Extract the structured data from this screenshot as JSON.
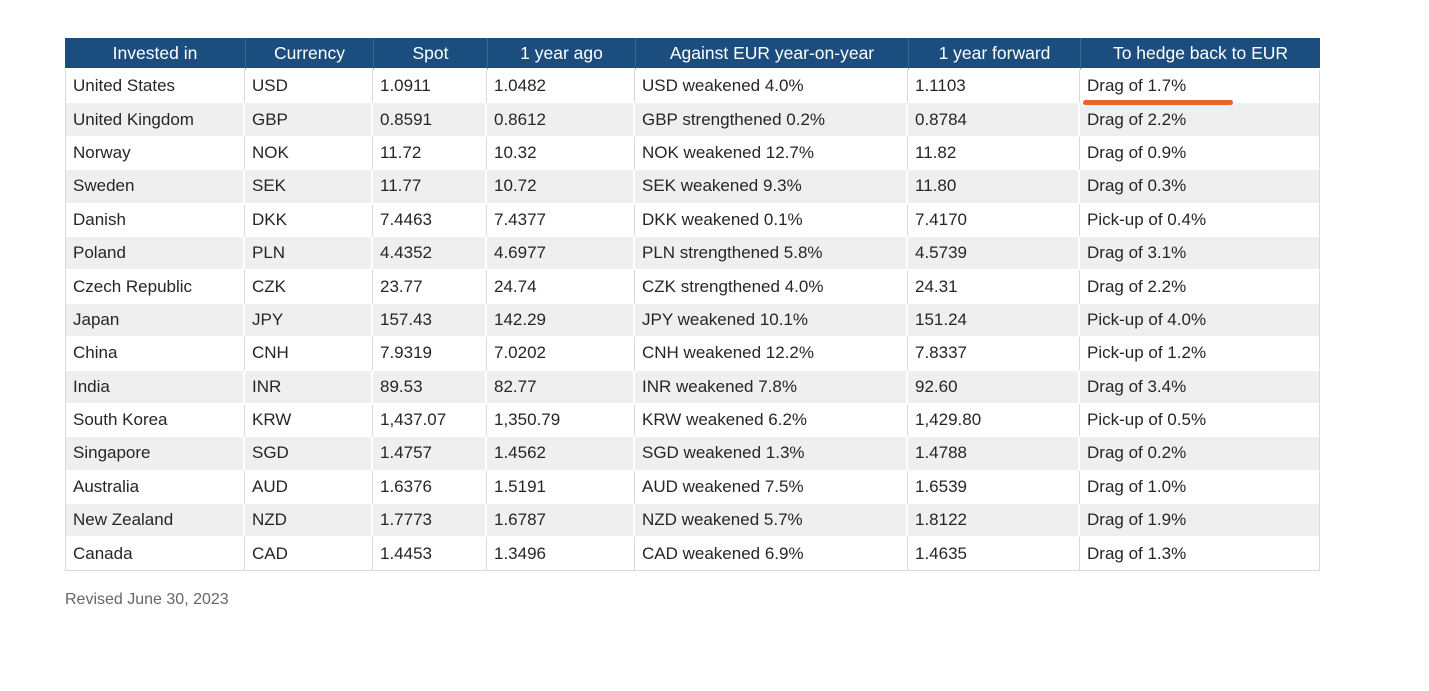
{
  "chart_data": {
    "type": "table",
    "title": "",
    "columns": [
      {
        "key": "invested_in",
        "label": "Invested in"
      },
      {
        "key": "currency",
        "label": "Currency"
      },
      {
        "key": "spot",
        "label": "Spot"
      },
      {
        "key": "one_year_ago",
        "label": "1 year ago"
      },
      {
        "key": "against_eur_yoy",
        "label": "Against EUR year-on-year"
      },
      {
        "key": "one_year_forward",
        "label": "1 year forward"
      },
      {
        "key": "to_hedge_back_to_eur",
        "label": "To hedge back to EUR"
      }
    ],
    "rows": [
      [
        "United States",
        "USD",
        "1.0911",
        "1.0482",
        "USD weakened 4.0%",
        "1.1103",
        "Drag of 1.7%"
      ],
      [
        "United Kingdom",
        "GBP",
        "0.8591",
        "0.8612",
        "GBP strengthened 0.2%",
        "0.8784",
        "Drag of 2.2%"
      ],
      [
        "Norway",
        "NOK",
        "11.72",
        "10.32",
        "NOK weakened 12.7%",
        "11.82",
        "Drag of 0.9%"
      ],
      [
        "Sweden",
        "SEK",
        "11.77",
        "10.72",
        "SEK weakened 9.3%",
        "11.80",
        "Drag of 0.3%"
      ],
      [
        "Danish",
        "DKK",
        "7.4463",
        "7.4377",
        "DKK weakened 0.1%",
        "7.4170",
        "Pick-up of 0.4%"
      ],
      [
        "Poland",
        "PLN",
        "4.4352",
        "4.6977",
        "PLN strengthened 5.8%",
        "4.5739",
        "Drag of 3.1%"
      ],
      [
        "Czech Republic",
        "CZK",
        "23.77",
        "24.74",
        "CZK strengthened 4.0%",
        "24.31",
        "Drag of 2.2%"
      ],
      [
        "Japan",
        "JPY",
        "157.43",
        "142.29",
        "JPY weakened 10.1%",
        "151.24",
        "Pick-up of 4.0%"
      ],
      [
        "China",
        "CNH",
        "7.9319",
        "7.0202",
        "CNH weakened 12.2%",
        "7.8337",
        "Pick-up of 1.2%"
      ],
      [
        "India",
        "INR",
        "89.53",
        "82.77",
        "INR weakened 7.8%",
        "92.60",
        "Drag of 3.4%"
      ],
      [
        "South Korea",
        "KRW",
        "1,437.07",
        "1,350.79",
        "KRW weakened 6.2%",
        "1,429.80",
        "Pick-up of 0.5%"
      ],
      [
        "Singapore",
        "SGD",
        "1.4757",
        "1.4562",
        "SGD weakened 1.3%",
        "1.4788",
        "Drag of 0.2%"
      ],
      [
        "Australia",
        "AUD",
        "1.6376",
        "1.5191",
        "AUD weakened 7.5%",
        "1.6539",
        "Drag of 1.0%"
      ],
      [
        "New Zealand",
        "NZD",
        "1.7773",
        "1.6787",
        "NZD weakened 5.7%",
        "1.8122",
        "Drag of 1.9%"
      ],
      [
        "Canada",
        "CAD",
        "1.4453",
        "1.3496",
        "CAD weakened 6.9%",
        "1.4635",
        "Drag of 1.3%"
      ]
    ],
    "layout": {
      "banding": "alternate-rows",
      "banded_rows": "even (2nd, 4th, ...)",
      "header_position": "top"
    },
    "annotations": [
      {
        "type": "underline",
        "target_row": "United States",
        "target_column": "To hedge back to EUR",
        "target_value": "Drag of 1.7%",
        "color": "#E7632C"
      }
    ],
    "footnote": "Revised June 30, 2023"
  },
  "footer": {
    "revised_label": "Revised June 30, 2023"
  },
  "colors": {
    "header_background": "#1B4E7E",
    "header_text": "#FFFFFF",
    "row_band": "#EFEFEF",
    "grid_line": "#D9D9D9",
    "body_text": "#262626",
    "footnote_text": "#666666",
    "accent_underline": "#E7632C"
  }
}
